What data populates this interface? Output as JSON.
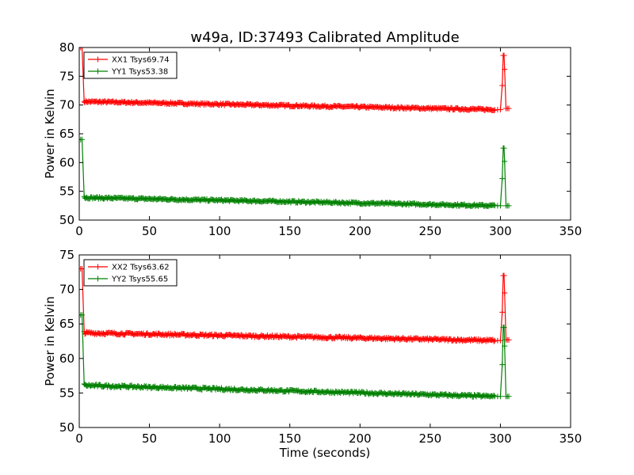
{
  "chart_data": [
    {
      "type": "line",
      "title": "w49a, ID:37493 Calibrated Amplitude",
      "xlabel": "",
      "ylabel": "Power in Kelvin",
      "xlim": [
        0,
        350
      ],
      "ylim": [
        50,
        80
      ],
      "xticks": [
        0,
        50,
        100,
        150,
        200,
        250,
        300,
        350
      ],
      "yticks": [
        50,
        55,
        60,
        65,
        70,
        75,
        80
      ],
      "legend_position": "upper-left",
      "series": [
        {
          "name": "XX1 Tsys69.74",
          "color": "#ff0000",
          "start": 80.0,
          "ramp_to": 70.6,
          "base_start": 70.6,
          "base_end": 69.2,
          "spike_from": 73.4,
          "spike": 78.6,
          "spike_to": 76.2,
          "end": 69.4
        },
        {
          "name": "YY1 Tsys53.38",
          "color": "#008000",
          "start": 64.0,
          "ramp_to": 54.1,
          "base_start": 53.9,
          "base_end": 52.5,
          "spike_from": 57.2,
          "spike": 62.5,
          "spike_to": 60.2,
          "end": 52.5
        }
      ]
    },
    {
      "type": "line",
      "title": "",
      "xlabel": "Time (seconds)",
      "ylabel": "Power in Kelvin",
      "xlim": [
        0,
        350
      ],
      "ylim": [
        50,
        75
      ],
      "xticks": [
        0,
        50,
        100,
        150,
        200,
        250,
        300,
        350
      ],
      "yticks": [
        50,
        55,
        60,
        65,
        70,
        75
      ],
      "legend_position": "upper-left",
      "series": [
        {
          "name": "XX2 Tsys63.62",
          "color": "#ff0000",
          "start": 73.0,
          "ramp_to": 63.9,
          "base_start": 63.7,
          "base_end": 62.6,
          "spike_from": 66.7,
          "spike": 72.0,
          "spike_to": 69.5,
          "end": 62.7
        },
        {
          "name": "YY2 Tsys55.65",
          "color": "#008000",
          "start": 66.3,
          "ramp_to": 56.3,
          "base_start": 56.1,
          "base_end": 54.5,
          "spike_from": 59.1,
          "spike": 64.5,
          "spike_to": 61.8,
          "end": 54.5
        }
      ]
    }
  ]
}
